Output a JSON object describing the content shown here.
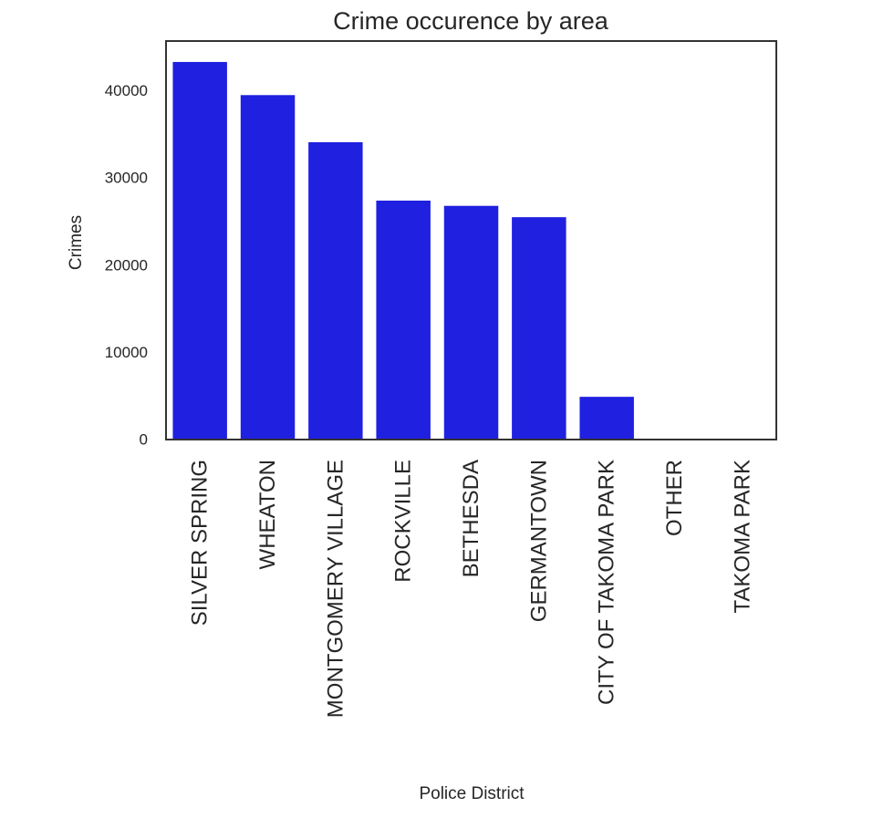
{
  "colors": {
    "bar": "#2020e0",
    "frame": "#333333",
    "text": "#262626",
    "background": "#ffffff"
  },
  "chart_data": {
    "type": "bar",
    "title": "Crime occurence by area",
    "xlabel": "Police District",
    "ylabel": "Crimes",
    "categories": [
      "SILVER SPRING",
      "WHEATON",
      "MONTGOMERY VILLAGE",
      "ROCKVILLE",
      "BETHESDA",
      "GERMANTOWN",
      "CITY OF TAKOMA PARK",
      "OTHER",
      "TAKOMA PARK"
    ],
    "values": [
      43300,
      39500,
      34100,
      27400,
      26800,
      25500,
      4900,
      40,
      15
    ],
    "yticks": [
      0,
      10000,
      20000,
      30000,
      40000
    ],
    "ylim": [
      0,
      45700
    ],
    "grid": false,
    "legend": "none"
  }
}
